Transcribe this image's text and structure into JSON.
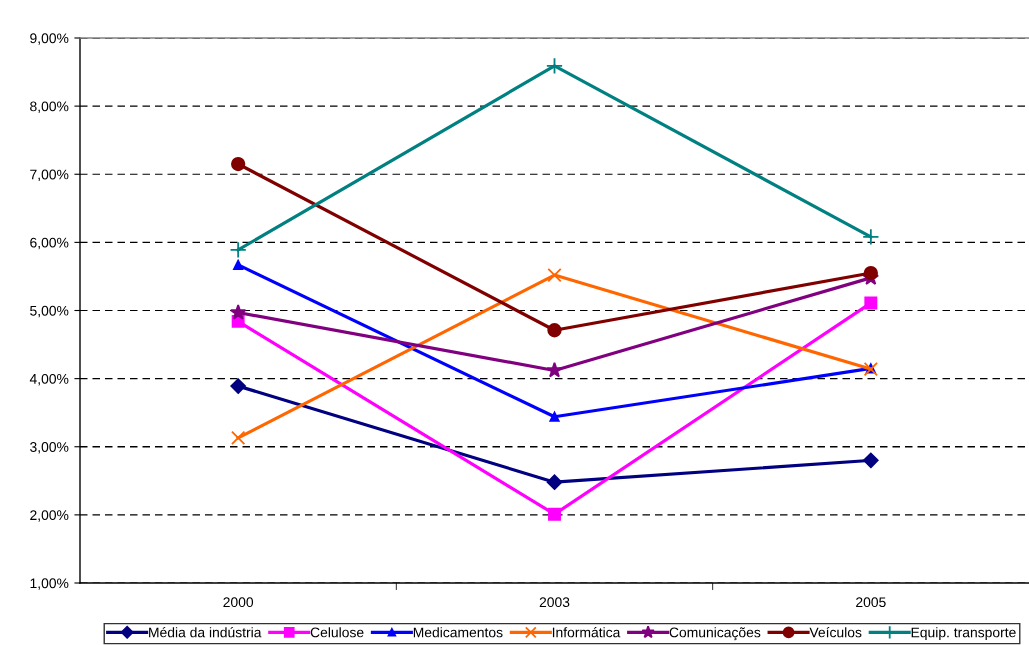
{
  "chart_data": {
    "type": "line",
    "categories": [
      "2000",
      "2003",
      "2005"
    ],
    "series": [
      {
        "name": "Média da indústria",
        "color": "#000080",
        "marker": "diamond",
        "values": [
          3.89,
          2.48,
          2.8
        ]
      },
      {
        "name": "Celulose",
        "color": "#ff00ff",
        "marker": "square",
        "values": [
          4.84,
          2.01,
          5.11
        ]
      },
      {
        "name": "Medicamentos",
        "color": "#0000ff",
        "marker": "triangle",
        "values": [
          5.67,
          3.44,
          4.15
        ]
      },
      {
        "name": "Informática",
        "color": "#ff6600",
        "marker": "cross",
        "values": [
          3.13,
          5.52,
          4.14
        ]
      },
      {
        "name": "Comunicações",
        "color": "#800080",
        "marker": "star",
        "values": [
          4.97,
          4.12,
          5.48
        ]
      },
      {
        "name": "Veículos",
        "color": "#800000",
        "marker": "circle",
        "values": [
          7.15,
          4.71,
          5.55
        ]
      },
      {
        "name": "Equip. transporte",
        "color": "#008080",
        "marker": "plus",
        "values": [
          5.89,
          8.59,
          6.08
        ]
      }
    ],
    "ylim": [
      1,
      9
    ],
    "yticks": [
      {
        "value": 1,
        "label": "1,00%"
      },
      {
        "value": 2,
        "label": "2,00%"
      },
      {
        "value": 3,
        "label": "3,00%"
      },
      {
        "value": 4,
        "label": "4,00%"
      },
      {
        "value": 5,
        "label": "5,00%"
      },
      {
        "value": 6,
        "label": "6,00%"
      },
      {
        "value": 7,
        "label": "7,00%"
      },
      {
        "value": 8,
        "label": "8,00%"
      },
      {
        "value": 9,
        "label": "9,00%"
      }
    ],
    "grid": "y",
    "legend": "bottom",
    "line_style": "solid"
  }
}
